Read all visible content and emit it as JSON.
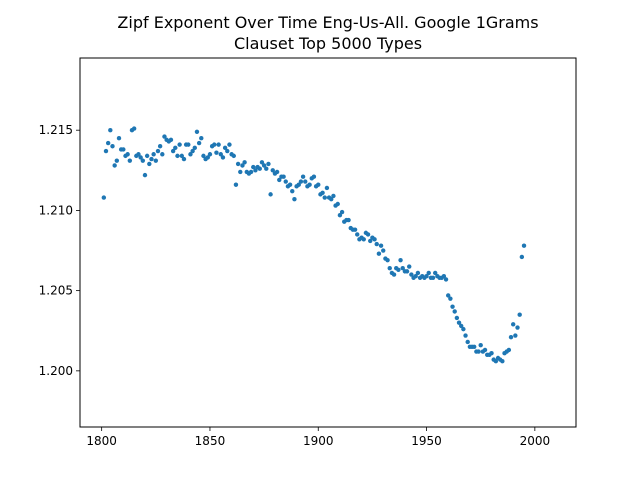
{
  "chart_data": {
    "type": "scatter",
    "title": [
      "Zipf Exponent Over Time Eng-Us-All. Google 1Grams",
      "Clauset Top 5000 Types"
    ],
    "xlabel": "",
    "ylabel": "",
    "xlim": [
      1790,
      2019
    ],
    "ylim": [
      1.1965,
      1.2195
    ],
    "x_ticks": [
      1800,
      1850,
      1900,
      1950,
      2000
    ],
    "y_ticks": [
      1.2,
      1.205,
      1.21,
      1.215
    ],
    "x_tick_labels": [
      "1800",
      "1850",
      "1900",
      "1950",
      "2000"
    ],
    "y_tick_labels": [
      "1.200",
      "1.205",
      "1.210",
      "1.215"
    ],
    "marker_color": "#1f77b4",
    "grid": false,
    "legend": false,
    "points": [
      [
        1801,
        1.2108
      ],
      [
        1802,
        1.2137
      ],
      [
        1803,
        1.2142
      ],
      [
        1804,
        1.215
      ],
      [
        1805,
        1.214
      ],
      [
        1806,
        1.2128
      ],
      [
        1807,
        1.2131
      ],
      [
        1808,
        1.2145
      ],
      [
        1809,
        1.2138
      ],
      [
        1810,
        1.2138
      ],
      [
        1811,
        1.2134
      ],
      [
        1812,
        1.2135
      ],
      [
        1813,
        1.2131
      ],
      [
        1814,
        1.215
      ],
      [
        1815,
        1.2151
      ],
      [
        1816,
        1.2134
      ],
      [
        1817,
        1.2135
      ],
      [
        1818,
        1.2133
      ],
      [
        1819,
        1.2131
      ],
      [
        1820,
        1.2122
      ],
      [
        1821,
        1.2134
      ],
      [
        1822,
        1.2129
      ],
      [
        1823,
        1.2132
      ],
      [
        1824,
        1.2135
      ],
      [
        1825,
        1.2131
      ],
      [
        1826,
        1.2137
      ],
      [
        1827,
        1.214
      ],
      [
        1828,
        1.2135
      ],
      [
        1829,
        1.2146
      ],
      [
        1830,
        1.2144
      ],
      [
        1831,
        1.2143
      ],
      [
        1832,
        1.2144
      ],
      [
        1833,
        1.2137
      ],
      [
        1834,
        1.2139
      ],
      [
        1835,
        1.2134
      ],
      [
        1836,
        1.2141
      ],
      [
        1837,
        1.2134
      ],
      [
        1838,
        1.2132
      ],
      [
        1839,
        1.2141
      ],
      [
        1840,
        1.2141
      ],
      [
        1841,
        1.2135
      ],
      [
        1842,
        1.2137
      ],
      [
        1843,
        1.2139
      ],
      [
        1844,
        1.2149
      ],
      [
        1845,
        1.2142
      ],
      [
        1846,
        1.2145
      ],
      [
        1847,
        1.2134
      ],
      [
        1848,
        1.2132
      ],
      [
        1849,
        1.2133
      ],
      [
        1850,
        1.2135
      ],
      [
        1851,
        1.214
      ],
      [
        1852,
        1.2141
      ],
      [
        1853,
        1.2136
      ],
      [
        1854,
        1.2141
      ],
      [
        1855,
        1.2135
      ],
      [
        1856,
        1.2133
      ],
      [
        1857,
        1.2139
      ],
      [
        1858,
        1.2137
      ],
      [
        1859,
        1.2141
      ],
      [
        1860,
        1.2135
      ],
      [
        1861,
        1.2134
      ],
      [
        1862,
        1.2116
      ],
      [
        1863,
        1.2129
      ],
      [
        1864,
        1.2124
      ],
      [
        1865,
        1.2128
      ],
      [
        1866,
        1.213
      ],
      [
        1867,
        1.2124
      ],
      [
        1868,
        1.2123
      ],
      [
        1869,
        1.2124
      ],
      [
        1870,
        1.2127
      ],
      [
        1871,
        1.2125
      ],
      [
        1872,
        1.2127
      ],
      [
        1873,
        1.2126
      ],
      [
        1874,
        1.213
      ],
      [
        1875,
        1.2128
      ],
      [
        1876,
        1.2126
      ],
      [
        1877,
        1.2129
      ],
      [
        1878,
        1.211
      ],
      [
        1879,
        1.2125
      ],
      [
        1880,
        1.2123
      ],
      [
        1881,
        1.2124
      ],
      [
        1882,
        1.2119
      ],
      [
        1883,
        1.2121
      ],
      [
        1884,
        1.2121
      ],
      [
        1885,
        1.2118
      ],
      [
        1886,
        1.2115
      ],
      [
        1887,
        1.2116
      ],
      [
        1888,
        1.2112
      ],
      [
        1889,
        1.2107
      ],
      [
        1890,
        1.2115
      ],
      [
        1891,
        1.2116
      ],
      [
        1892,
        1.2118
      ],
      [
        1893,
        1.2121
      ],
      [
        1894,
        1.2118
      ],
      [
        1895,
        1.2115
      ],
      [
        1896,
        1.2116
      ],
      [
        1897,
        1.212
      ],
      [
        1898,
        1.2121
      ],
      [
        1899,
        1.2115
      ],
      [
        1900,
        1.2116
      ],
      [
        1901,
        1.211
      ],
      [
        1902,
        1.2111
      ],
      [
        1903,
        1.2108
      ],
      [
        1904,
        1.2114
      ],
      [
        1905,
        1.2108
      ],
      [
        1906,
        1.2107
      ],
      [
        1907,
        1.2109
      ],
      [
        1908,
        1.2103
      ],
      [
        1909,
        1.2104
      ],
      [
        1910,
        1.2097
      ],
      [
        1911,
        1.2099
      ],
      [
        1912,
        1.2093
      ],
      [
        1913,
        1.2094
      ],
      [
        1914,
        1.2094
      ],
      [
        1915,
        1.2089
      ],
      [
        1916,
        1.2088
      ],
      [
        1917,
        1.2088
      ],
      [
        1918,
        1.2085
      ],
      [
        1919,
        1.2082
      ],
      [
        1920,
        1.2083
      ],
      [
        1921,
        1.2082
      ],
      [
        1922,
        1.2086
      ],
      [
        1923,
        1.2085
      ],
      [
        1924,
        1.2081
      ],
      [
        1925,
        1.2083
      ],
      [
        1926,
        1.2082
      ],
      [
        1927,
        1.2079
      ],
      [
        1928,
        1.2073
      ],
      [
        1929,
        1.2078
      ],
      [
        1930,
        1.2075
      ],
      [
        1931,
        1.207
      ],
      [
        1932,
        1.2069
      ],
      [
        1933,
        1.2064
      ],
      [
        1934,
        1.2061
      ],
      [
        1935,
        1.206
      ],
      [
        1936,
        1.2064
      ],
      [
        1937,
        1.2063
      ],
      [
        1938,
        1.2069
      ],
      [
        1939,
        1.2064
      ],
      [
        1940,
        1.2062
      ],
      [
        1941,
        1.2062
      ],
      [
        1942,
        1.2065
      ],
      [
        1943,
        1.206
      ],
      [
        1944,
        1.2058
      ],
      [
        1945,
        1.2059
      ],
      [
        1946,
        1.2061
      ],
      [
        1947,
        1.2058
      ],
      [
        1948,
        1.2059
      ],
      [
        1949,
        1.2058
      ],
      [
        1950,
        1.2059
      ],
      [
        1951,
        1.2061
      ],
      [
        1952,
        1.2058
      ],
      [
        1953,
        1.2058
      ],
      [
        1954,
        1.2061
      ],
      [
        1955,
        1.2059
      ],
      [
        1956,
        1.2058
      ],
      [
        1957,
        1.2058
      ],
      [
        1958,
        1.2059
      ],
      [
        1959,
        1.2057
      ],
      [
        1960,
        1.2047
      ],
      [
        1961,
        1.2045
      ],
      [
        1962,
        1.204
      ],
      [
        1963,
        1.2037
      ],
      [
        1964,
        1.2033
      ],
      [
        1965,
        1.203
      ],
      [
        1966,
        1.2028
      ],
      [
        1967,
        1.2026
      ],
      [
        1968,
        1.2022
      ],
      [
        1969,
        1.2018
      ],
      [
        1970,
        1.2015
      ],
      [
        1971,
        1.2015
      ],
      [
        1972,
        1.2015
      ],
      [
        1973,
        1.2012
      ],
      [
        1974,
        1.2012
      ],
      [
        1975,
        1.2016
      ],
      [
        1976,
        1.2012
      ],
      [
        1977,
        1.2013
      ],
      [
        1978,
        1.201
      ],
      [
        1979,
        1.201
      ],
      [
        1980,
        1.2011
      ],
      [
        1981,
        1.2007
      ],
      [
        1982,
        1.2006
      ],
      [
        1983,
        1.2008
      ],
      [
        1984,
        1.2007
      ],
      [
        1985,
        1.2006
      ],
      [
        1986,
        1.2011
      ],
      [
        1987,
        1.2012
      ],
      [
        1988,
        1.2013
      ],
      [
        1989,
        1.2021
      ],
      [
        1990,
        1.2029
      ],
      [
        1991,
        1.2022
      ],
      [
        1992,
        1.2027
      ],
      [
        1993,
        1.2035
      ],
      [
        1994,
        1.2071
      ],
      [
        1995,
        1.2078
      ]
    ]
  }
}
